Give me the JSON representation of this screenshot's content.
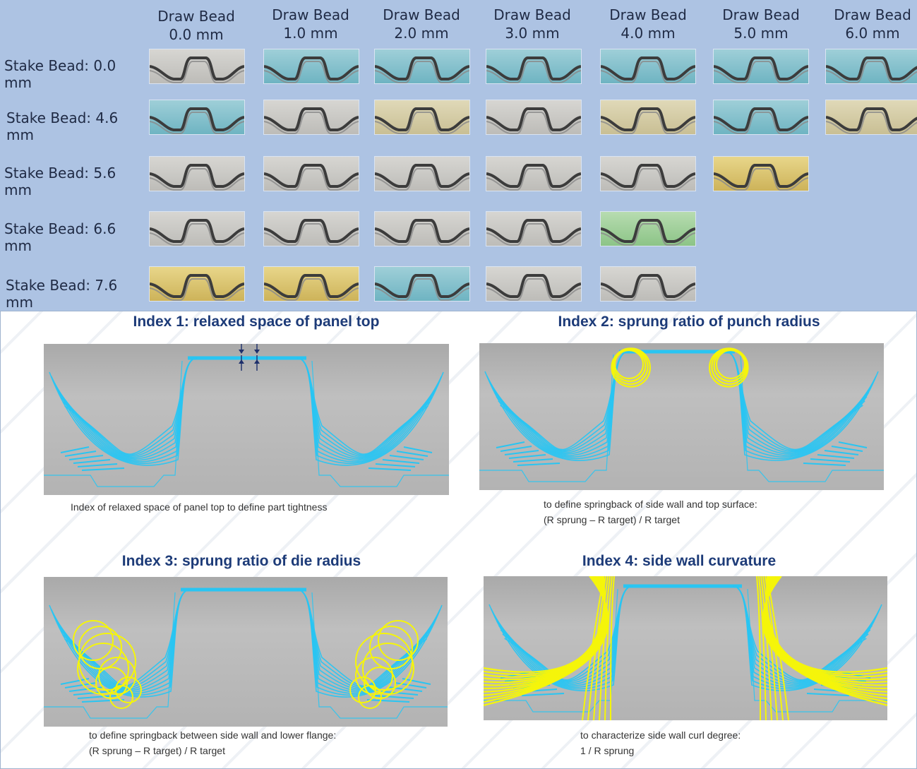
{
  "matrix": {
    "columns": [
      {
        "line1": "Draw Bead",
        "line2": "0.0 mm"
      },
      {
        "line1": "Draw Bead",
        "line2": "1.0 mm"
      },
      {
        "line1": "Draw Bead",
        "line2": "2.0 mm"
      },
      {
        "line1": "Draw Bead",
        "line2": "3.0 mm"
      },
      {
        "line1": "Draw Bead",
        "line2": "4.0 mm"
      },
      {
        "line1": "Draw Bead",
        "line2": "5.0 mm"
      },
      {
        "line1": "Draw Bead",
        "line2": "6.0 mm"
      }
    ],
    "rows": [
      {
        "label": "Stake Bead: 0.0 mm",
        "samples": [
          "grey",
          "teal",
          "teal",
          "teal",
          "teal",
          "teal",
          "teal"
        ]
      },
      {
        "label": "Stake Bead: 4.6 mm",
        "samples": [
          "teal",
          "grey",
          "beige",
          "grey",
          "beige",
          "teal",
          "beige"
        ]
      },
      {
        "label": "Stake Bead: 5.6 mm",
        "samples": [
          "grey",
          "grey",
          "grey",
          "grey",
          "grey",
          "yellow"
        ]
      },
      {
        "label": "Stake Bead: 6.6 mm",
        "samples": [
          "grey",
          "grey",
          "grey",
          "grey",
          "green"
        ]
      },
      {
        "label": "Stake Bead: 7.6 mm",
        "samples": [
          "yellow",
          "yellow",
          "teal",
          "grey",
          "grey"
        ]
      }
    ],
    "background": "#adc3e3"
  },
  "indices": [
    {
      "title": "Index 1: relaxed space of panel top",
      "caption_line1": "Index of relaxed space of panel top to define part tightness",
      "caption_line2": ""
    },
    {
      "title": "Index 2: sprung ratio of punch radius",
      "caption_line1": "to define springback of side wall and top surface:",
      "caption_line2": "(R sprung – R target) / R target"
    },
    {
      "title": "Index 3: sprung ratio of die radius",
      "caption_line1": "to define springback between side wall and lower flange:",
      "caption_line2": "(R sprung – R target) / R target"
    },
    {
      "title": "Index 4: side wall curvature",
      "caption_line1": "to characterize side wall curl degree:",
      "caption_line2": "1 / R sprung"
    }
  ],
  "colors": {
    "profile": "#29c5f2",
    "highlight": "#f5f50a",
    "title": "#1d3b78",
    "panel": "#b3b3b3"
  }
}
